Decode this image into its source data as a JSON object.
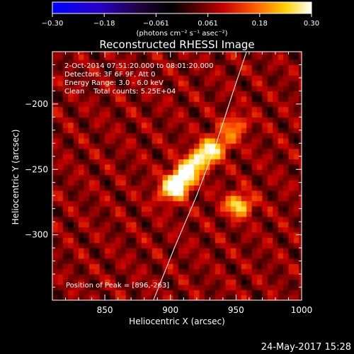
{
  "chart_data": {
    "type": "heatmap",
    "title": "Reconstructed RHESSI Image",
    "xlabel": "Heliocentric X (arcsec)",
    "ylabel": "Heliocentric Y (arcsec)",
    "xlim": [
      810,
      1000
    ],
    "ylim": [
      -350,
      -160
    ],
    "x_ticks": [
      850,
      900,
      950,
      1000
    ],
    "y_ticks": [
      -200,
      -250,
      -300
    ],
    "colorbar": {
      "range": [
        -0.3,
        0.3
      ],
      "ticks": [
        "-0.30",
        "-0.18",
        "-0.061",
        "0.061",
        "0.18",
        "0.30"
      ],
      "label": "(photons cm⁻² s⁻¹ asec⁻²)",
      "colormap": "blue-black-red-yellow-white"
    },
    "info_lines": [
      "2-Oct-2014 07:51:20.000 to 08:01:20.000",
      "Detectors: 3F 6F 9F, Att 0",
      "Energy Range: 3.0 - 6.0 keV",
      "Clean    Total counts: 5.25E+04"
    ],
    "peak_text": "Position of Peak = [896,-263]",
    "sources": [
      {
        "x": 905,
        "y": -262,
        "amp": 0.3,
        "sx": 9,
        "sy": 6,
        "angle": 40
      },
      {
        "x": 925,
        "y": -240,
        "amp": 0.26,
        "sx": 18,
        "sy": 6,
        "angle": 40
      },
      {
        "x": 952,
        "y": -277,
        "amp": 0.22,
        "sx": 7,
        "sy": 6,
        "angle": 0
      },
      {
        "x": 950,
        "y": -215,
        "amp": 0.1,
        "sx": 6,
        "sy": 5,
        "angle": 0
      }
    ],
    "background_level": 0.06,
    "limb_curve": [
      [
        887,
        -350
      ],
      [
        903,
        -310
      ],
      [
        920,
        -270
      ],
      [
        935,
        -230
      ],
      [
        948,
        -190
      ],
      [
        958,
        -160
      ]
    ]
  },
  "footer": {
    "date": "24-May-2017 15:28"
  }
}
